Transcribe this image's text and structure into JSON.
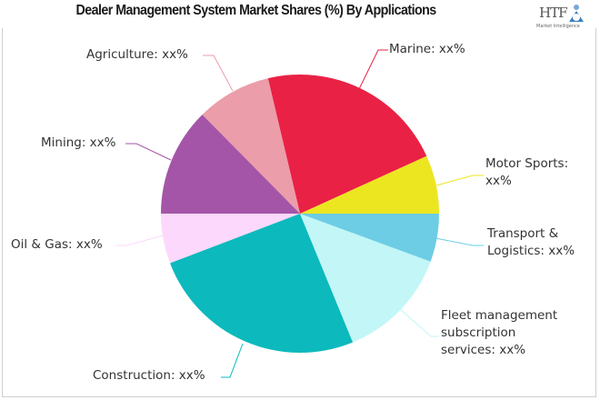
{
  "header": {
    "title": "Dealer Management System Market Shares (%) By Applications",
    "logo_text": "HTF",
    "logo_subtext": "Market Intelligence"
  },
  "chart_data": {
    "type": "pie",
    "title": "Dealer Management System Market Shares (%) By Applications",
    "start_angle_deg": 0,
    "direction": "counterclockwise",
    "slices": [
      {
        "name": "Motor Sports",
        "label": "Motor Sports: xx%",
        "value": 6.8,
        "color": "#ECE621"
      },
      {
        "name": "Marine",
        "label": "Marine: xx%",
        "value": 21.9,
        "color": "#E92145"
      },
      {
        "name": "Agriculture",
        "label": "Agriculture: xx%",
        "value": 8.7,
        "color": "#EB9DAA"
      },
      {
        "name": "Mining",
        "label": "Mining: xx%",
        "value": 12.6,
        "color": "#A455A8"
      },
      {
        "name": "Oil & Gas",
        "label": "Oil & Gas: xx%",
        "value": 5.8,
        "color": "#FCD9FC"
      },
      {
        "name": "Construction",
        "label": "Construction: xx%",
        "value": 25.4,
        "color": "#0CB9BC"
      },
      {
        "name": "Fleet management subscription services",
        "label": "Fleet management subscription services: xx%",
        "value": 13.2,
        "color": "#C2F6F7"
      },
      {
        "name": "Transport & Logistics",
        "label": "Transport & Logistics: xx%",
        "value": 5.6,
        "color": "#6CCDE4"
      }
    ],
    "legend": "none (callout labels)"
  },
  "labels": {
    "marine": "Marine: xx%",
    "agriculture": "Agriculture: xx%",
    "mining": "Mining: xx%",
    "motor_sports_1": "Motor Sports:",
    "motor_sports_2": "xx%",
    "transport_1": "Transport &",
    "transport_2": "Logistics: xx%",
    "oil_gas": "Oil & Gas: xx%",
    "fleet_1": "Fleet management",
    "fleet_2": "subscription",
    "fleet_3": "services: xx%",
    "construction": "Construction: xx%"
  }
}
